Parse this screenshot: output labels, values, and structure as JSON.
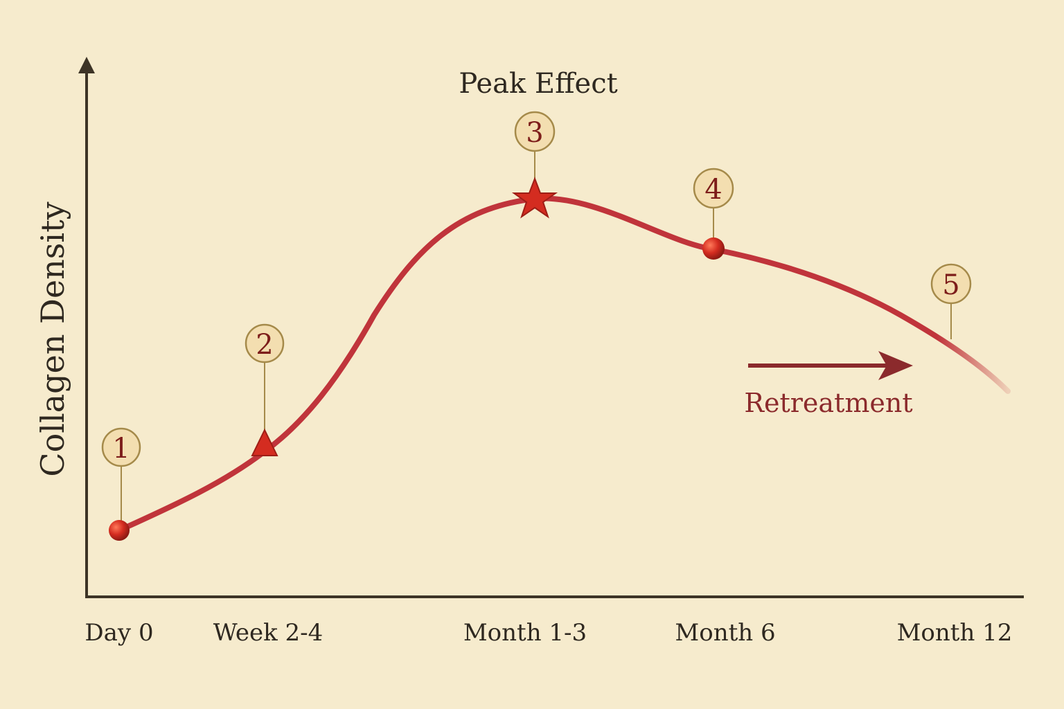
{
  "chart_data": {
    "type": "line",
    "title": "",
    "ylabel": "Collagen Density",
    "xlabel": "",
    "categories": [
      "Day 0",
      "Week 2-4",
      "Month 1-3",
      "Month 6",
      "Month 12"
    ],
    "series": [
      {
        "values": [
          0.12,
          0.3,
          0.77,
          0.64,
          0.48
        ]
      }
    ],
    "ylim": [
      0,
      1
    ],
    "grid": false,
    "markers": [
      {
        "number": "1",
        "category": "Day 0",
        "shape": "circle"
      },
      {
        "number": "2",
        "category": "Week 2-4",
        "shape": "triangle"
      },
      {
        "number": "3",
        "category": "Month 1-3",
        "shape": "star"
      },
      {
        "number": "4",
        "category": "Month 6",
        "shape": "circle"
      },
      {
        "number": "5",
        "category": "Month 12",
        "shape": "none"
      }
    ],
    "annotations": {
      "peak": "Peak Effect",
      "retreatment": "Retreatment"
    },
    "colors": {
      "background": "#f6ebcd",
      "line": "#c0343b",
      "marker": "#d42c20",
      "axis": "#3d3426",
      "badge_fill": "#f3deb0",
      "badge_stroke": "#a58a4a",
      "badge_text": "#7d1d1a",
      "retreatment": "#8b2a2c",
      "text": "#2e2820"
    }
  }
}
